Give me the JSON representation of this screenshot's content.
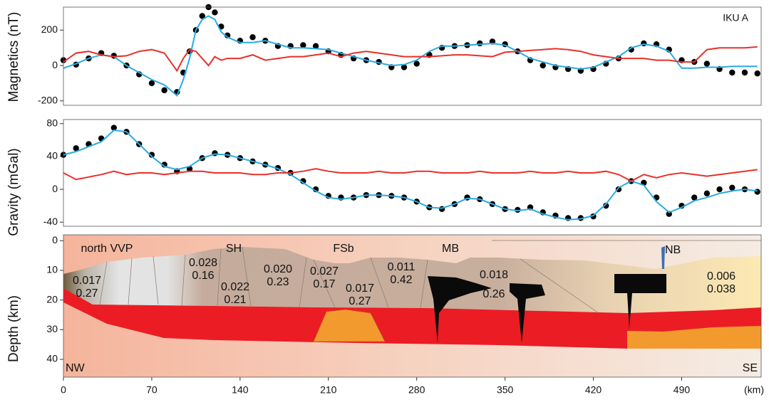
{
  "chart_data": [
    {
      "type": "line",
      "ylabel": "Magnetics (nT)",
      "annotation": "IKU A",
      "xlim": [
        0,
        553
      ],
      "ylim": [
        -225,
        330
      ],
      "yticks": [
        -200,
        0,
        200
      ],
      "x": [
        0,
        10,
        20,
        30,
        40,
        50,
        60,
        70,
        80,
        90,
        95,
        100,
        105,
        110,
        115,
        120,
        125,
        130,
        140,
        150,
        160,
        170,
        180,
        190,
        200,
        210,
        220,
        230,
        240,
        250,
        260,
        270,
        280,
        290,
        300,
        310,
        320,
        330,
        340,
        350,
        360,
        370,
        380,
        390,
        400,
        410,
        420,
        430,
        440,
        450,
        460,
        470,
        480,
        490,
        500,
        510,
        520,
        530,
        540,
        550
      ],
      "series": [
        {
          "style": "markers",
          "color": "#000000",
          "values": [
            30,
            5,
            40,
            70,
            55,
            0,
            -50,
            -100,
            -140,
            -150,
            -40,
            80,
            200,
            280,
            330,
            300,
            220,
            170,
            140,
            160,
            140,
            110,
            110,
            115,
            110,
            80,
            60,
            40,
            30,
            20,
            -10,
            -10,
            10,
            60,
            100,
            110,
            115,
            125,
            135,
            120,
            80,
            30,
            0,
            -10,
            -20,
            -30,
            -20,
            10,
            40,
            90,
            125,
            120,
            90,
            30,
            20,
            10,
            -20,
            -40,
            -40,
            -45
          ]
        },
        {
          "style": "line",
          "color": "#29abe2",
          "values": [
            -15,
            10,
            40,
            60,
            50,
            0,
            -40,
            -80,
            -110,
            -170,
            -80,
            40,
            200,
            260,
            280,
            260,
            190,
            160,
            130,
            130,
            140,
            120,
            100,
            100,
            95,
            90,
            70,
            50,
            30,
            15,
            0,
            5,
            30,
            80,
            110,
            110,
            115,
            120,
            125,
            115,
            80,
            40,
            20,
            0,
            -10,
            -20,
            -10,
            20,
            50,
            100,
            120,
            110,
            80,
            -15,
            -15,
            -10,
            -10,
            -5,
            -5,
            -5
          ]
        },
        {
          "style": "line",
          "color": "#e8302a",
          "values": [
            20,
            70,
            80,
            60,
            50,
            55,
            80,
            90,
            70,
            -30,
            40,
            90,
            80,
            40,
            0,
            50,
            30,
            40,
            40,
            60,
            30,
            40,
            50,
            50,
            60,
            70,
            50,
            70,
            80,
            70,
            60,
            50,
            50,
            50,
            55,
            60,
            60,
            55,
            50,
            75,
            80,
            85,
            90,
            95,
            90,
            80,
            60,
            50,
            40,
            40,
            40,
            30,
            30,
            20,
            20,
            90,
            100,
            100,
            100,
            105
          ]
        }
      ]
    },
    {
      "type": "line",
      "ylabel": "Gravity (mGal)",
      "xlim": [
        0,
        553
      ],
      "ylim": [
        -45,
        85
      ],
      "yticks": [
        -40,
        0,
        40,
        80
      ],
      "x": [
        0,
        10,
        20,
        30,
        40,
        50,
        60,
        70,
        80,
        90,
        100,
        110,
        120,
        130,
        140,
        150,
        160,
        170,
        180,
        190,
        200,
        210,
        220,
        230,
        240,
        250,
        260,
        270,
        280,
        290,
        300,
        310,
        320,
        330,
        340,
        350,
        360,
        370,
        380,
        390,
        400,
        410,
        420,
        430,
        440,
        450,
        460,
        470,
        480,
        490,
        500,
        510,
        520,
        530,
        540,
        550
      ],
      "series": [
        {
          "style": "markers",
          "color": "#000000",
          "values": [
            42,
            50,
            55,
            62,
            75,
            70,
            55,
            42,
            30,
            22,
            25,
            38,
            44,
            42,
            38,
            34,
            30,
            26,
            20,
            10,
            0,
            -8,
            -10,
            -10,
            -7,
            -7,
            -8,
            -10,
            -15,
            -22,
            -24,
            -18,
            -10,
            -12,
            -18,
            -24,
            -25,
            -22,
            -28,
            -32,
            -35,
            -35,
            -33,
            -20,
            0,
            10,
            8,
            -10,
            -30,
            -20,
            -10,
            -5,
            0,
            2,
            0,
            -3
          ]
        },
        {
          "style": "line",
          "color": "#29abe2",
          "values": [
            42,
            46,
            52,
            58,
            72,
            70,
            55,
            40,
            28,
            24,
            28,
            38,
            43,
            42,
            38,
            34,
            30,
            25,
            18,
            8,
            -2,
            -10,
            -12,
            -10,
            -7,
            -7,
            -8,
            -10,
            -15,
            -22,
            -23,
            -18,
            -11,
            -12,
            -18,
            -24,
            -26,
            -24,
            -30,
            -34,
            -37,
            -36,
            -32,
            -18,
            2,
            10,
            5,
            -15,
            -28,
            -22,
            -14,
            -10,
            -5,
            -2,
            0,
            -2
          ]
        },
        {
          "style": "line",
          "color": "#e8302a",
          "values": [
            20,
            12,
            15,
            18,
            22,
            18,
            20,
            20,
            18,
            20,
            22,
            22,
            20,
            20,
            20,
            18,
            18,
            20,
            20,
            22,
            25,
            22,
            20,
            20,
            20,
            22,
            20,
            20,
            22,
            22,
            20,
            20,
            20,
            22,
            20,
            20,
            20,
            22,
            20,
            20,
            22,
            20,
            20,
            22,
            18,
            10,
            18,
            14,
            18,
            20,
            18,
            16,
            18,
            20,
            22,
            24
          ]
        }
      ]
    },
    {
      "type": "section",
      "ylabel": "Depth (km)",
      "xlabel": "(km)",
      "xlim": [
        0,
        553
      ],
      "ylim": [
        -2,
        46
      ],
      "reversed": true,
      "yticks": [
        0,
        10,
        20,
        30,
        40
      ],
      "xticks": [
        0,
        70,
        140,
        210,
        280,
        350,
        420,
        490
      ],
      "labels": [
        "north VVP",
        "SH",
        "FSb",
        "MB",
        "NB",
        "NW",
        "SE"
      ],
      "properties": [
        [
          "0.017",
          "0.27"
        ],
        [
          "0.028",
          "0.16"
        ],
        [
          "0.022",
          "0.21"
        ],
        [
          "0.020",
          "0.23"
        ],
        [
          "0.027",
          "0.17"
        ],
        [
          "0.017",
          "0.27"
        ],
        [
          "0.011",
          "0.42"
        ],
        [
          "0.018",
          "0.26"
        ],
        [
          "0.006",
          "0.038"
        ]
      ]
    }
  ]
}
